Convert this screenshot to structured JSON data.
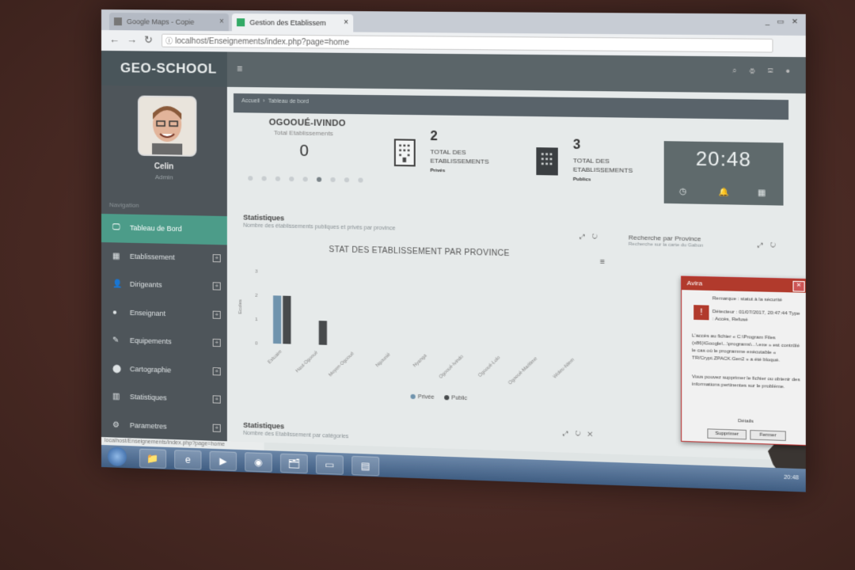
{
  "browser": {
    "tabs": [
      {
        "label": "Google Maps - Copie"
      },
      {
        "label": "Gestion des Etablissem"
      }
    ],
    "url": "localhost/Enseignements/index.php?page=home",
    "status_url": "localhost/Enseignements/index.php?page=home"
  },
  "app": {
    "brand": "GEO-SCHOOL"
  },
  "user": {
    "name": "Celin",
    "role": "Admin"
  },
  "sidebar": {
    "heading": "Navigation",
    "items": [
      {
        "label": "Tableau de Bord",
        "icon": "monitor-icon",
        "glyph": "🖵",
        "expandable": false
      },
      {
        "label": "Etablissement",
        "icon": "building-icon",
        "glyph": "▦",
        "expandable": true
      },
      {
        "label": "Dirigeants",
        "icon": "user-icon",
        "glyph": "👤",
        "expandable": true
      },
      {
        "label": "Enseignant",
        "icon": "pin-icon",
        "glyph": "●",
        "expandable": true
      },
      {
        "label": "Equipements",
        "icon": "pencil-icon",
        "glyph": "✎",
        "expandable": true
      },
      {
        "label": "Cartographie",
        "icon": "map-marker-icon",
        "glyph": "⬤",
        "expandable": true
      },
      {
        "label": "Statistiques",
        "icon": "chart-icon",
        "glyph": "▥",
        "expandable": true
      },
      {
        "label": "Parametres",
        "icon": "gear-icon",
        "glyph": "⚙",
        "expandable": true
      }
    ]
  },
  "breadcrumb": {
    "home": "Accueil",
    "current": "Tableau de bord"
  },
  "dashboard": {
    "province": "OGOOUÉ-IVINDO",
    "province_sub": "Total Etablissements",
    "province_count": "0",
    "kpi_private": {
      "value": "2",
      "label": "TOTAL DES ETABLISSEMENTS",
      "sub": "Privés"
    },
    "kpi_public": {
      "value": "3",
      "label": "TOTAL DES ETABLISSEMENTS",
      "sub": "Publics"
    },
    "clock": {
      "time": "20:48"
    },
    "stats_title": "Statistiques",
    "stats_sub": "Nombre des établissements publiques et privés par province",
    "search_title": "Recherche par Province",
    "search_sub": "Recherche sur la carte du Gabon",
    "stats2_title": "Statistiques",
    "stats2_sub": "Nombre des Etablissement par catégories"
  },
  "chart_data": {
    "type": "bar",
    "title": "STAT DES ETABLISSEMENT PAR PROVINCE",
    "ylabel": "Ecoles",
    "ylim": [
      0,
      3
    ],
    "yticks": [
      "0",
      "1",
      "2",
      "3"
    ],
    "categories": [
      "Estuaire",
      "Haut-Ogooué",
      "Moyen-Ogooué",
      "Ngounié",
      "Nyanga",
      "Ogooué-Ivindo",
      "Ogooué-Lolo",
      "Ogooué-Maritime",
      "Woleu-Ntem"
    ],
    "series": [
      {
        "name": "Privée",
        "color": "#6f93ad",
        "values": [
          2,
          0,
          0,
          0,
          0,
          0,
          0,
          0,
          0
        ]
      },
      {
        "name": "Public",
        "color": "#474a4c",
        "values": [
          2,
          1,
          0,
          0,
          0,
          0,
          0,
          0,
          0
        ]
      }
    ],
    "legend": "bottom"
  },
  "alert": {
    "title": "Avira",
    "line1": "Remarque : statut à la sécurité",
    "line2": "Détecteur : 01/07/2017, 20:47:44 Type : Accès, Refusé",
    "line3": "L'accès au fichier « C:\\Program Files (x86)\\Google\\...\\programs\\...\\.exe » est contrôlé le cas où le programme exécutable « TR/Crypt.ZPACK.Gen2 » a été bloqué.",
    "line4": "Vous pouvez supprimer le fichier ou obtenir des informations pertinentes sur le problème.",
    "btn_delete": "Supprimer",
    "btn_close": "Fermer",
    "footer": "Détails"
  },
  "taskbar": {
    "apps": [
      {
        "icon": "folder-icon",
        "glyph": "📁"
      },
      {
        "icon": "ie-icon",
        "glyph": "e"
      },
      {
        "icon": "media-player-icon",
        "glyph": "▶"
      },
      {
        "icon": "chrome-icon",
        "glyph": "◉"
      },
      {
        "icon": "folder2-icon",
        "glyph": "🗂"
      },
      {
        "icon": "presentation-icon",
        "glyph": "▭"
      },
      {
        "icon": "window-icon",
        "glyph": "▤"
      }
    ],
    "clock": "20:48"
  }
}
